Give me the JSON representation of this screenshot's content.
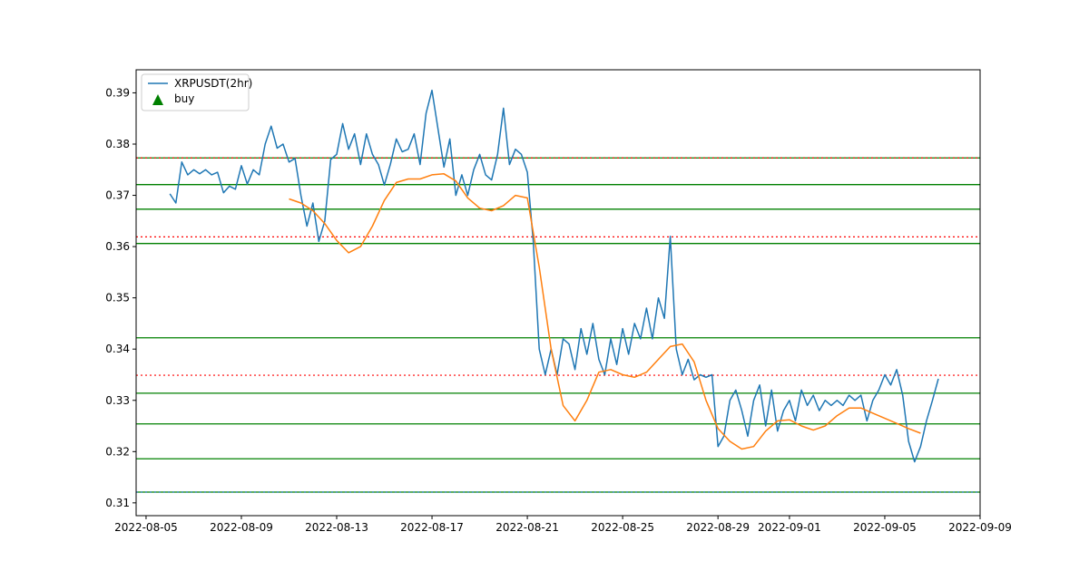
{
  "chart_data": {
    "type": "line",
    "title": "",
    "xlabel": "",
    "ylabel": "",
    "x_range": [
      "2022-08-04T14:00",
      "2022-09-09T00:00"
    ],
    "ylim": [
      0.3075,
      0.3945
    ],
    "x_ticks": [
      "2022-08-05",
      "2022-08-09",
      "2022-08-13",
      "2022-08-17",
      "2022-08-21",
      "2022-08-25",
      "2022-08-29",
      "2022-09-01",
      "2022-09-05",
      "2022-09-09"
    ],
    "y_ticks": [
      "0.31",
      "0.32",
      "0.33",
      "0.34",
      "0.35",
      "0.36",
      "0.37",
      "0.38",
      "0.39"
    ],
    "grid": false,
    "legend": {
      "placement": "top-left",
      "entries": [
        {
          "label": "XRPUSDT(2hr)",
          "kind": "line",
          "color": "#1f77b4"
        },
        {
          "label": "buy",
          "kind": "triangle",
          "color": "#008000"
        }
      ]
    },
    "series": [
      {
        "name": "XRPUSDT(2hr)",
        "color": "#1f77b4",
        "points": [
          [
            "2022-08-06T00:00",
            0.3703
          ],
          [
            "2022-08-06T06:00",
            0.3685
          ],
          [
            "2022-08-06T12:00",
            0.3765
          ],
          [
            "2022-08-06T18:00",
            0.374
          ],
          [
            "2022-08-07T00:00",
            0.375
          ],
          [
            "2022-08-07T06:00",
            0.3742
          ],
          [
            "2022-08-07T12:00",
            0.375
          ],
          [
            "2022-08-07T18:00",
            0.374
          ],
          [
            "2022-08-08T00:00",
            0.3745
          ],
          [
            "2022-08-08T06:00",
            0.3705
          ],
          [
            "2022-08-08T12:00",
            0.3718
          ],
          [
            "2022-08-08T18:00",
            0.3712
          ],
          [
            "2022-08-09T00:00",
            0.3758
          ],
          [
            "2022-08-09T06:00",
            0.3722
          ],
          [
            "2022-08-09T12:00",
            0.375
          ],
          [
            "2022-08-09T18:00",
            0.374
          ],
          [
            "2022-08-10T00:00",
            0.38
          ],
          [
            "2022-08-10T06:00",
            0.3835
          ],
          [
            "2022-08-10T12:00",
            0.3792
          ],
          [
            "2022-08-10T18:00",
            0.38
          ],
          [
            "2022-08-11T00:00",
            0.3765
          ],
          [
            "2022-08-11T06:00",
            0.3772
          ],
          [
            "2022-08-11T12:00",
            0.37
          ],
          [
            "2022-08-11T18:00",
            0.364
          ],
          [
            "2022-08-12T00:00",
            0.3685
          ],
          [
            "2022-08-12T06:00",
            0.361
          ],
          [
            "2022-08-12T12:00",
            0.365
          ],
          [
            "2022-08-12T18:00",
            0.377
          ],
          [
            "2022-08-13T00:00",
            0.378
          ],
          [
            "2022-08-13T06:00",
            0.384
          ],
          [
            "2022-08-13T12:00",
            0.379
          ],
          [
            "2022-08-13T18:00",
            0.382
          ],
          [
            "2022-08-14T00:00",
            0.376
          ],
          [
            "2022-08-14T06:00",
            0.382
          ],
          [
            "2022-08-14T12:00",
            0.378
          ],
          [
            "2022-08-14T18:00",
            0.376
          ],
          [
            "2022-08-15T00:00",
            0.372
          ],
          [
            "2022-08-15T06:00",
            0.376
          ],
          [
            "2022-08-15T12:00",
            0.381
          ],
          [
            "2022-08-15T18:00",
            0.3785
          ],
          [
            "2022-08-16T00:00",
            0.379
          ],
          [
            "2022-08-16T06:00",
            0.382
          ],
          [
            "2022-08-16T12:00",
            0.376
          ],
          [
            "2022-08-16T18:00",
            0.386
          ],
          [
            "2022-08-17T00:00",
            0.3905
          ],
          [
            "2022-08-17T06:00",
            0.383
          ],
          [
            "2022-08-17T12:00",
            0.3755
          ],
          [
            "2022-08-17T18:00",
            0.381
          ],
          [
            "2022-08-18T00:00",
            0.37
          ],
          [
            "2022-08-18T06:00",
            0.374
          ],
          [
            "2022-08-18T12:00",
            0.37
          ],
          [
            "2022-08-18T18:00",
            0.375
          ],
          [
            "2022-08-19T00:00",
            0.378
          ],
          [
            "2022-08-19T06:00",
            0.374
          ],
          [
            "2022-08-19T12:00",
            0.373
          ],
          [
            "2022-08-19T18:00",
            0.378
          ],
          [
            "2022-08-20T00:00",
            0.387
          ],
          [
            "2022-08-20T06:00",
            0.376
          ],
          [
            "2022-08-20T12:00",
            0.379
          ],
          [
            "2022-08-20T18:00",
            0.378
          ],
          [
            "2022-08-21T00:00",
            0.3745
          ],
          [
            "2022-08-21T06:00",
            0.361
          ],
          [
            "2022-08-21T12:00",
            0.34
          ],
          [
            "2022-08-21T18:00",
            0.335
          ],
          [
            "2022-08-22T00:00",
            0.34
          ],
          [
            "2022-08-22T06:00",
            0.335
          ],
          [
            "2022-08-22T12:00",
            0.342
          ],
          [
            "2022-08-22T18:00",
            0.341
          ],
          [
            "2022-08-23T00:00",
            0.336
          ],
          [
            "2022-08-23T06:00",
            0.344
          ],
          [
            "2022-08-23T12:00",
            0.339
          ],
          [
            "2022-08-23T18:00",
            0.345
          ],
          [
            "2022-08-24T00:00",
            0.338
          ],
          [
            "2022-08-24T06:00",
            0.335
          ],
          [
            "2022-08-24T12:00",
            0.342
          ],
          [
            "2022-08-24T18:00",
            0.337
          ],
          [
            "2022-08-25T00:00",
            0.344
          ],
          [
            "2022-08-25T06:00",
            0.339
          ],
          [
            "2022-08-25T12:00",
            0.345
          ],
          [
            "2022-08-25T18:00",
            0.342
          ],
          [
            "2022-08-26T00:00",
            0.348
          ],
          [
            "2022-08-26T06:00",
            0.342
          ],
          [
            "2022-08-26T12:00",
            0.35
          ],
          [
            "2022-08-26T18:00",
            0.346
          ],
          [
            "2022-08-27T00:00",
            0.362
          ],
          [
            "2022-08-27T06:00",
            0.34
          ],
          [
            "2022-08-27T12:00",
            0.335
          ],
          [
            "2022-08-27T18:00",
            0.338
          ],
          [
            "2022-08-28T00:00",
            0.334
          ],
          [
            "2022-08-28T06:00",
            0.335
          ],
          [
            "2022-08-28T12:00",
            0.3345
          ],
          [
            "2022-08-28T18:00",
            0.335
          ],
          [
            "2022-08-29T00:00",
            0.321
          ],
          [
            "2022-08-29T06:00",
            0.323
          ],
          [
            "2022-08-29T12:00",
            0.33
          ],
          [
            "2022-08-29T18:00",
            0.332
          ],
          [
            "2022-08-30T00:00",
            0.328
          ],
          [
            "2022-08-30T06:00",
            0.323
          ],
          [
            "2022-08-30T12:00",
            0.33
          ],
          [
            "2022-08-30T18:00",
            0.333
          ],
          [
            "2022-08-31T00:00",
            0.325
          ],
          [
            "2022-08-31T06:00",
            0.332
          ],
          [
            "2022-08-31T12:00",
            0.324
          ],
          [
            "2022-08-31T18:00",
            0.328
          ],
          [
            "2022-09-01T00:00",
            0.33
          ],
          [
            "2022-09-01T06:00",
            0.326
          ],
          [
            "2022-09-01T12:00",
            0.332
          ],
          [
            "2022-09-01T18:00",
            0.329
          ],
          [
            "2022-09-02T00:00",
            0.331
          ],
          [
            "2022-09-02T06:00",
            0.328
          ],
          [
            "2022-09-02T12:00",
            0.33
          ],
          [
            "2022-09-02T18:00",
            0.329
          ],
          [
            "2022-09-03T00:00",
            0.33
          ],
          [
            "2022-09-03T06:00",
            0.329
          ],
          [
            "2022-09-03T12:00",
            0.331
          ],
          [
            "2022-09-03T18:00",
            0.33
          ],
          [
            "2022-09-04T00:00",
            0.331
          ],
          [
            "2022-09-04T06:00",
            0.326
          ],
          [
            "2022-09-04T12:00",
            0.33
          ],
          [
            "2022-09-04T18:00",
            0.332
          ],
          [
            "2022-09-05T00:00",
            0.335
          ],
          [
            "2022-09-05T06:00",
            0.333
          ],
          [
            "2022-09-05T12:00",
            0.336
          ],
          [
            "2022-09-05T18:00",
            0.331
          ],
          [
            "2022-09-06T00:00",
            0.322
          ],
          [
            "2022-09-06T06:00",
            0.318
          ],
          [
            "2022-09-06T12:00",
            0.321
          ],
          [
            "2022-09-06T18:00",
            0.326
          ],
          [
            "2022-09-07T00:00",
            0.33
          ],
          [
            "2022-09-07T06:00",
            0.3342
          ]
        ]
      },
      {
        "color": "#ff7f0e",
        "points": [
          [
            "2022-08-11T00:00",
            0.3693
          ],
          [
            "2022-08-11T12:00",
            0.3685
          ],
          [
            "2022-08-12T00:00",
            0.367
          ],
          [
            "2022-08-12T12:00",
            0.3645
          ],
          [
            "2022-08-13T00:00",
            0.3612
          ],
          [
            "2022-08-13T12:00",
            0.3588
          ],
          [
            "2022-08-14T00:00",
            0.36
          ],
          [
            "2022-08-14T12:00",
            0.364
          ],
          [
            "2022-08-15T00:00",
            0.369
          ],
          [
            "2022-08-15T12:00",
            0.3725
          ],
          [
            "2022-08-16T00:00",
            0.3732
          ],
          [
            "2022-08-16T12:00",
            0.3732
          ],
          [
            "2022-08-17T00:00",
            0.374
          ],
          [
            "2022-08-17T12:00",
            0.3742
          ],
          [
            "2022-08-18T00:00",
            0.3728
          ],
          [
            "2022-08-18T12:00",
            0.3695
          ],
          [
            "2022-08-19T00:00",
            0.3675
          ],
          [
            "2022-08-19T12:00",
            0.367
          ],
          [
            "2022-08-20T00:00",
            0.368
          ],
          [
            "2022-08-20T12:00",
            0.37
          ],
          [
            "2022-08-21T00:00",
            0.3695
          ],
          [
            "2022-08-21T12:00",
            0.356
          ],
          [
            "2022-08-22T00:00",
            0.34
          ],
          [
            "2022-08-22T12:00",
            0.329
          ],
          [
            "2022-08-23T00:00",
            0.326
          ],
          [
            "2022-08-23T12:00",
            0.33
          ],
          [
            "2022-08-24T00:00",
            0.3355
          ],
          [
            "2022-08-24T12:00",
            0.336
          ],
          [
            "2022-08-25T00:00",
            0.335
          ],
          [
            "2022-08-25T12:00",
            0.3345
          ],
          [
            "2022-08-26T00:00",
            0.3355
          ],
          [
            "2022-08-26T12:00",
            0.338
          ],
          [
            "2022-08-27T00:00",
            0.3405
          ],
          [
            "2022-08-27T12:00",
            0.341
          ],
          [
            "2022-08-28T00:00",
            0.3375
          ],
          [
            "2022-08-28T12:00",
            0.33
          ],
          [
            "2022-08-29T00:00",
            0.3245
          ],
          [
            "2022-08-29T12:00",
            0.322
          ],
          [
            "2022-08-30T00:00",
            0.3205
          ],
          [
            "2022-08-30T12:00",
            0.321
          ],
          [
            "2022-08-31T00:00",
            0.324
          ],
          [
            "2022-08-31T12:00",
            0.326
          ],
          [
            "2022-09-01T00:00",
            0.3262
          ],
          [
            "2022-09-01T12:00",
            0.325
          ],
          [
            "2022-09-02T00:00",
            0.3242
          ],
          [
            "2022-09-02T12:00",
            0.325
          ],
          [
            "2022-09-03T00:00",
            0.327
          ],
          [
            "2022-09-03T12:00",
            0.3285
          ],
          [
            "2022-09-04T00:00",
            0.3285
          ],
          [
            "2022-09-04T12:00",
            0.3275
          ],
          [
            "2022-09-05T00:00",
            0.3265
          ],
          [
            "2022-09-05T12:00",
            0.3255
          ],
          [
            "2022-09-06T00:00",
            0.3245
          ],
          [
            "2022-09-06T12:00",
            0.3236
          ]
        ]
      }
    ],
    "horizontal_lines": [
      {
        "y": 0.3773,
        "color": "#008000",
        "style": "solid"
      },
      {
        "y": 0.3721,
        "color": "#008000",
        "style": "solid"
      },
      {
        "y": 0.3673,
        "color": "#008000",
        "style": "solid"
      },
      {
        "y": 0.3606,
        "color": "#008000",
        "style": "solid"
      },
      {
        "y": 0.3422,
        "color": "#008000",
        "style": "solid"
      },
      {
        "y": 0.3314,
        "color": "#008000",
        "style": "solid"
      },
      {
        "y": 0.3254,
        "color": "#008000",
        "style": "solid"
      },
      {
        "y": 0.3186,
        "color": "#008000",
        "style": "solid"
      },
      {
        "y": 0.3121,
        "color": "#008000",
        "style": "solid"
      },
      {
        "y": 0.3773,
        "color": "#ff0000",
        "style": "dotted"
      },
      {
        "y": 0.3619,
        "color": "#ff0000",
        "style": "dotted"
      },
      {
        "y": 0.3349,
        "color": "#ff0000",
        "style": "dotted"
      },
      {
        "y": 0.3121,
        "color": "#1f77b4",
        "style": "dotted"
      }
    ]
  }
}
